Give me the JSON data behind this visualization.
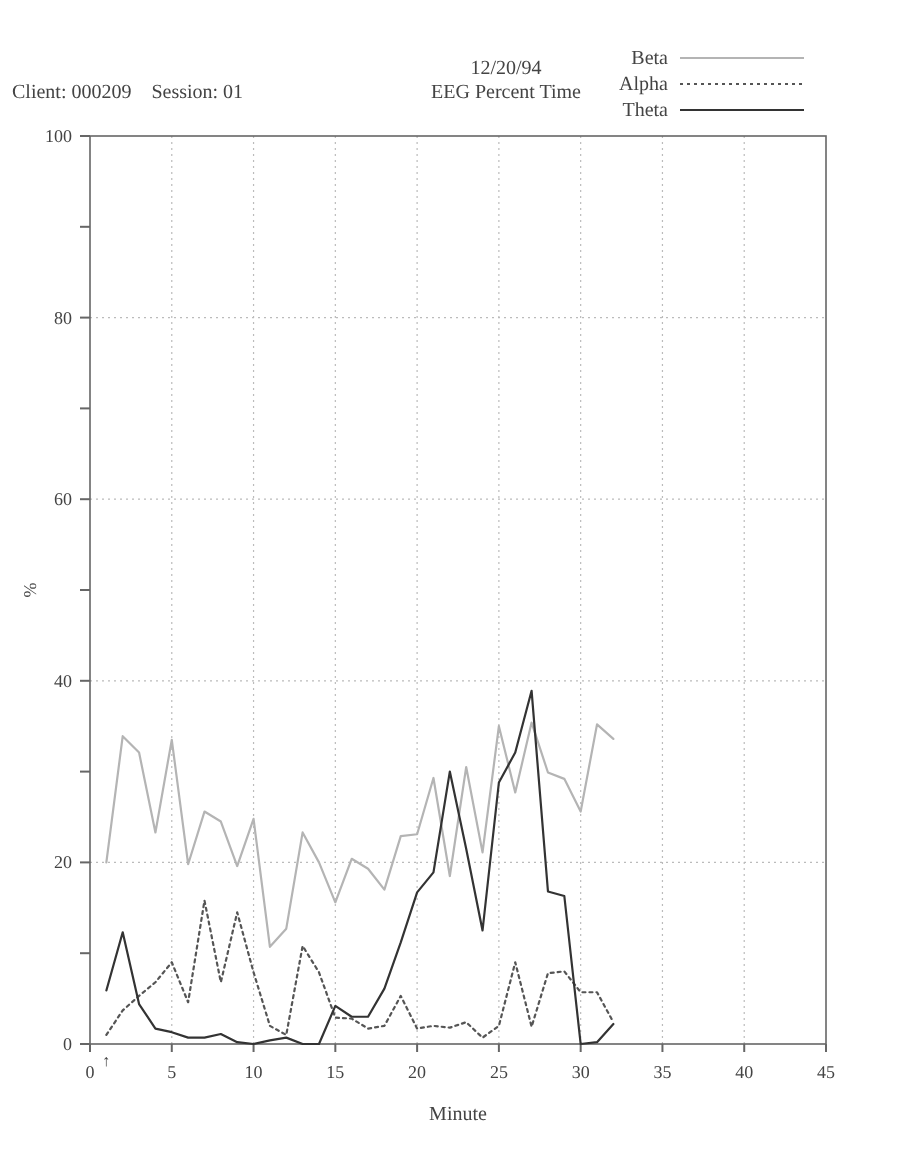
{
  "chart_data": {
    "type": "line",
    "title": "EEG Percent Time",
    "subtitle": "12/20/94",
    "annotations": [
      "Client: 000209    Session: 01",
      {
        "text": "↑",
        "x": 1,
        "y": 0
      }
    ],
    "xlabel": "Minute",
    "ylabel": "%",
    "x": [
      1,
      2,
      3,
      4,
      5,
      6,
      7,
      8,
      9,
      10,
      11,
      12,
      13,
      14,
      15,
      16,
      17,
      18,
      19,
      20,
      21,
      22,
      23,
      24,
      25,
      26,
      27,
      28,
      29,
      30,
      31,
      32
    ],
    "series": [
      {
        "name": "Beta",
        "color": "#b4b4b4",
        "line_style": "solid",
        "values": [
          20,
          33.9,
          32.1,
          23.3,
          33.5,
          19.8,
          25.6,
          24.5,
          19.6,
          24.8,
          10.7,
          12.7,
          23.3,
          20,
          15.6,
          20.4,
          19.3,
          17,
          22.9,
          23.1,
          29.3,
          18.5,
          30.5,
          21.1,
          35,
          27.7,
          35.4,
          29.9,
          29.2,
          25.6,
          35.2,
          33.6
        ]
      },
      {
        "name": "Alpha",
        "color": "#555555",
        "line_style": "dotted",
        "values": [
          1,
          3.7,
          5.3,
          6.8,
          9,
          4.6,
          15.8,
          6.8,
          14.5,
          7.9,
          2,
          1,
          10.8,
          7.9,
          2.9,
          2.8,
          1.7,
          2,
          5.3,
          1.7,
          2,
          1.8,
          2.4,
          0.7,
          2,
          9,
          1.9,
          7.8,
          8,
          5.7,
          5.7,
          2.4
        ]
      },
      {
        "name": "Theta",
        "color": "#333333",
        "line_style": "solid",
        "values": [
          5.9,
          12.3,
          4.4,
          1.7,
          1.3,
          0.7,
          0.7,
          1.1,
          0.2,
          0,
          0.4,
          0.7,
          0,
          0,
          4.2,
          3,
          3,
          6.1,
          11.2,
          16.7,
          18.9,
          30,
          21.5,
          12.5,
          28.8,
          32.1,
          38.9,
          16.8,
          16.3,
          0,
          0.2,
          2.2
        ]
      }
    ],
    "xlim": [
      0,
      45
    ],
    "xticks": [
      0,
      5,
      10,
      15,
      20,
      25,
      30,
      35,
      40,
      45
    ],
    "ylim": [
      0,
      100
    ],
    "yticks": [
      0,
      {
        "value": 10,
        "label": null
      },
      20,
      {
        "value": 30,
        "label": null
      },
      40,
      {
        "value": 50,
        "label": null
      },
      60,
      {
        "value": 70,
        "label": null
      },
      80,
      {
        "value": 90,
        "label": null
      },
      100
    ],
    "grid": true,
    "legend": "top right"
  }
}
